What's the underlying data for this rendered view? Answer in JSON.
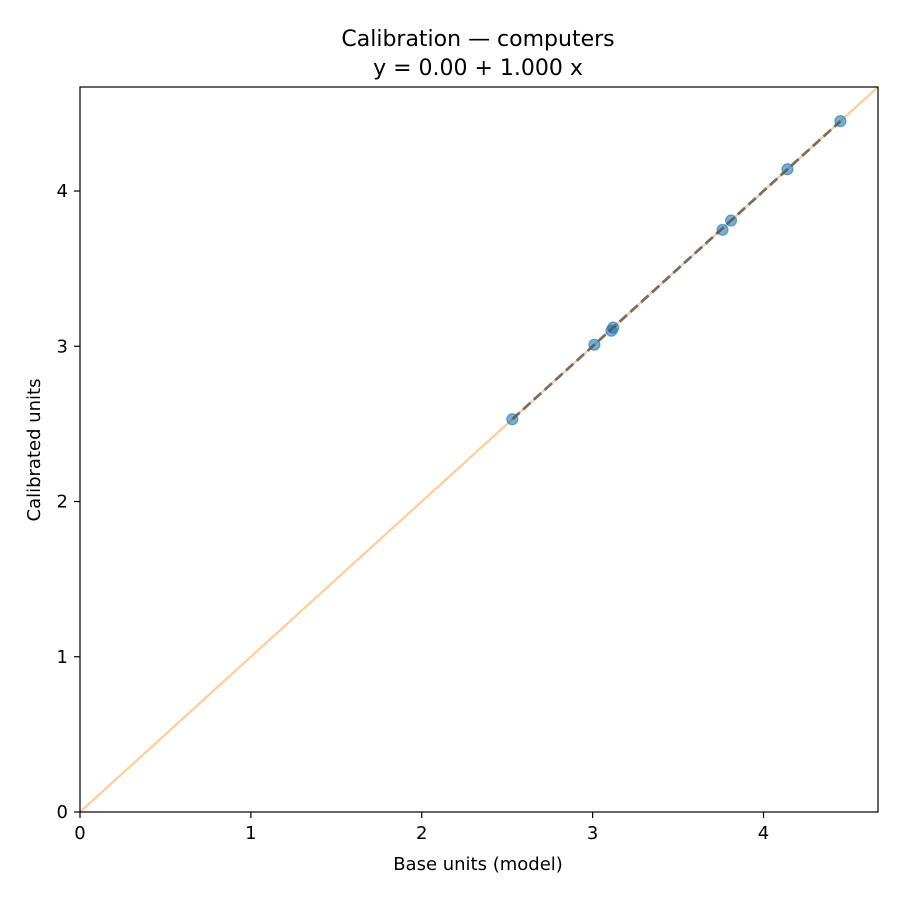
{
  "chart_data": {
    "type": "scatter",
    "title": "Calibration — computers",
    "subtitle": "y = 0.00 + 1.000 x",
    "xlabel": "Base units (model)",
    "ylabel": "Calibrated units",
    "xlim": [
      0,
      4.67
    ],
    "ylim": [
      0,
      4.67
    ],
    "xticks": [
      0,
      1,
      2,
      3,
      4
    ],
    "yticks": [
      0,
      1,
      2,
      3,
      4
    ],
    "grid": false,
    "series": [
      {
        "kind": "points",
        "color": "#1f77b4",
        "points": [
          [
            2.53,
            2.53
          ],
          [
            3.01,
            3.01
          ],
          [
            3.11,
            3.1
          ],
          [
            3.12,
            3.12
          ],
          [
            3.76,
            3.75
          ],
          [
            3.81,
            3.81
          ],
          [
            4.14,
            4.14
          ],
          [
            4.45,
            4.45
          ]
        ]
      },
      {
        "kind": "identity-line",
        "color": "#ffbb78",
        "x": [
          0,
          4.67
        ],
        "y": [
          0,
          4.67
        ]
      },
      {
        "kind": "fit-line",
        "color": "#555555",
        "style": "dashed",
        "x": [
          2.53,
          4.45
        ],
        "y": [
          2.53,
          4.45
        ]
      }
    ]
  }
}
